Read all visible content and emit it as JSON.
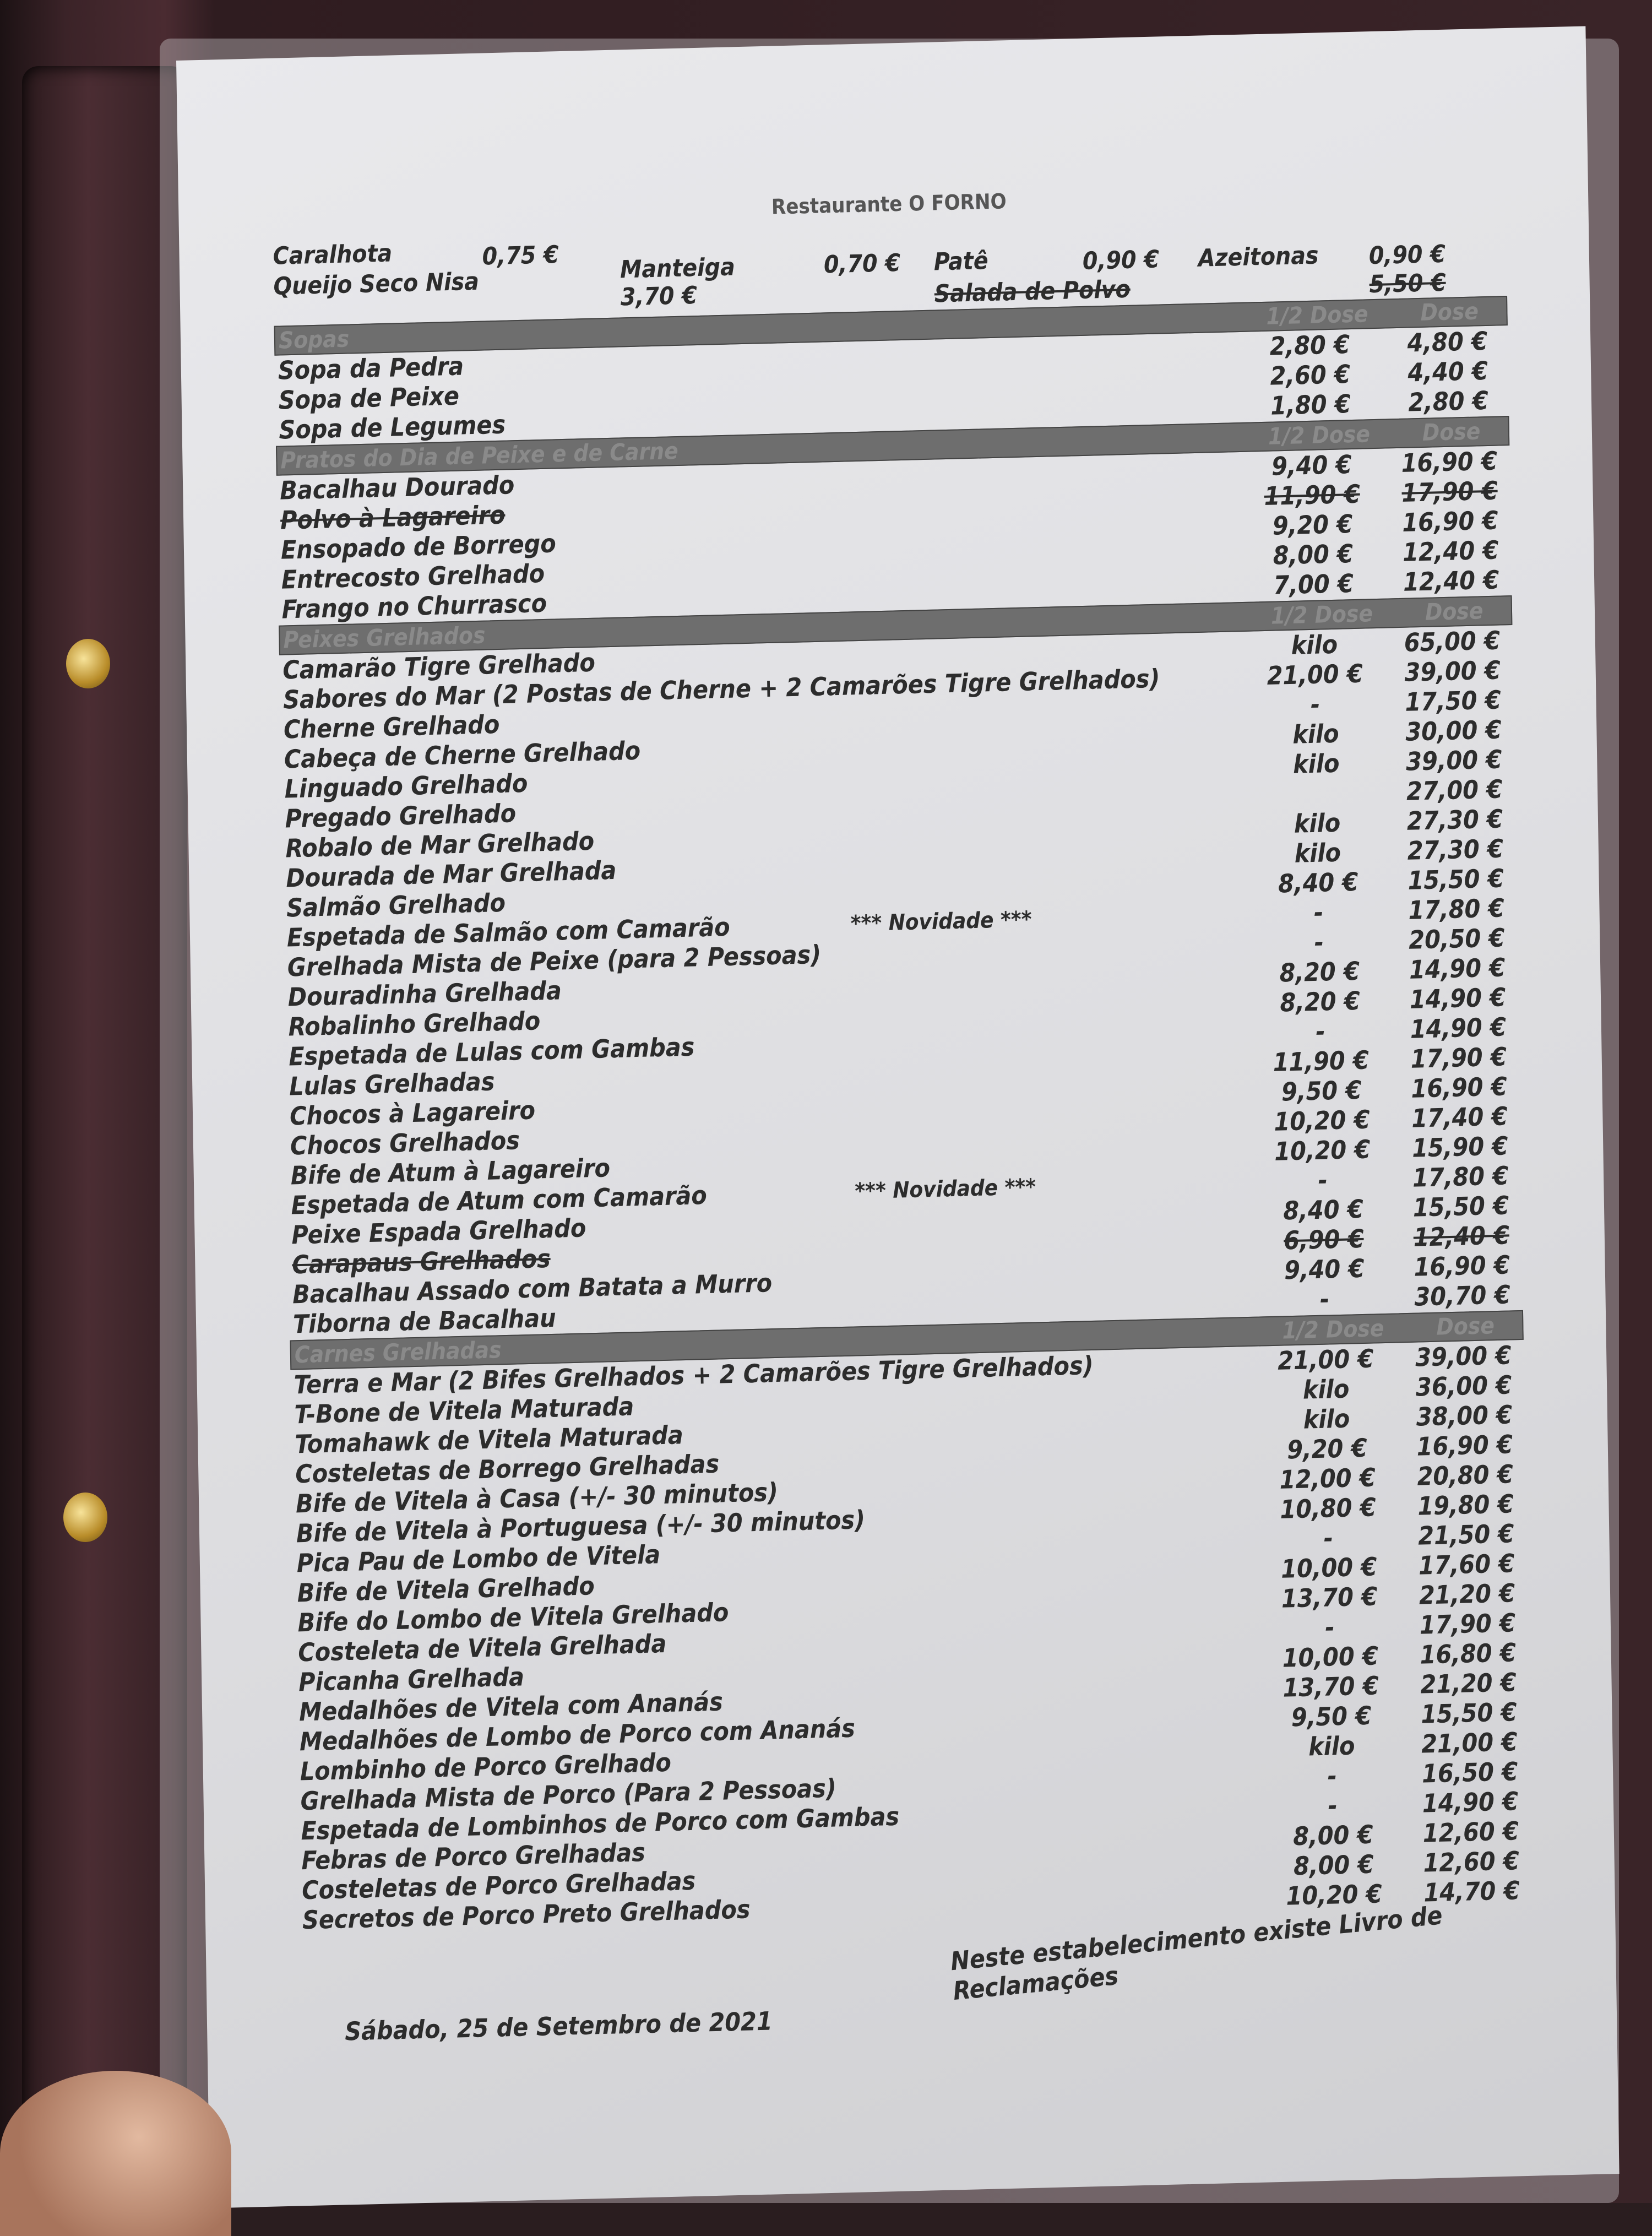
{
  "title": "Restaurante O FORNO",
  "starters": [
    {
      "name": "Caralhota",
      "price": "0,75 €"
    },
    {
      "name": "Manteiga",
      "price": "0,70 €"
    },
    {
      "name": "Patê",
      "price": "0,90 €"
    },
    {
      "name": "Azeitonas",
      "price": "0,90 €"
    },
    {
      "name": "Queijo Seco Nisa",
      "price": "3,70 €"
    },
    {
      "name": "Salada de Polvo",
      "price": "5,50 €",
      "struck": true
    }
  ],
  "sections": [
    {
      "name": "Sopas",
      "h1": "1/2 Dose",
      "h2": "Dose",
      "items": [
        {
          "name": "Sopa da Pedra",
          "half": "2,80 €",
          "full": "4,80 €"
        },
        {
          "name": "Sopa de Peixe",
          "half": "2,60 €",
          "full": "4,40 €"
        },
        {
          "name": "Sopa de Legumes",
          "half": "1,80 €",
          "full": "2,80 €"
        }
      ]
    },
    {
      "name": "Pratos do Dia de Peixe e de Carne",
      "h1": "1/2 Dose",
      "h2": "Dose",
      "items": [
        {
          "name": "Bacalhau Dourado",
          "half": "9,40 €",
          "full": "16,90 €"
        },
        {
          "name": "Polvo à Lagareiro",
          "half": "11,90 €",
          "full": "17,90 €",
          "struck": true
        },
        {
          "name": "Ensopado de Borrego",
          "half": "9,20 €",
          "full": "16,90 €"
        },
        {
          "name": "Entrecosto Grelhado",
          "half": "8,00 €",
          "full": "12,40 €"
        },
        {
          "name": "Frango no Churrasco",
          "half": "7,00 €",
          "full": "12,40 €"
        }
      ]
    },
    {
      "name": "Peixes Grelhados",
      "h1": "1/2 Dose",
      "h2": "Dose",
      "items": [
        {
          "name": "Camarão Tigre Grelhado",
          "half": "kilo",
          "full": "65,00 €"
        },
        {
          "name": "Sabores do Mar (2 Postas de Cherne + 2 Camarões Tigre Grelhados)",
          "half": "21,00 €",
          "full": "39,00 €"
        },
        {
          "name": "Cherne Grelhado",
          "half": "-",
          "full": "17,50 €"
        },
        {
          "name": "Cabeça de Cherne Grelhado",
          "half": "kilo",
          "full": "30,00 €"
        },
        {
          "name": "Linguado Grelhado",
          "half": "kilo",
          "full": "39,00 €"
        },
        {
          "name": "Pregado Grelhado",
          "half": "",
          "full": "27,00 €"
        },
        {
          "name": "Robalo de Mar Grelhado",
          "half": "kilo",
          "full": "27,30 €"
        },
        {
          "name": "Dourada de Mar Grelhada",
          "half": "kilo",
          "full": "27,30 €"
        },
        {
          "name": "Salmão Grelhado",
          "half": "8,40 €",
          "full": "15,50 €"
        },
        {
          "name": "Espetada de Salmão com Camarão",
          "note": "*** Novidade ***",
          "half": "-",
          "full": "17,80 €"
        },
        {
          "name": "Grelhada Mista de Peixe (para 2 Pessoas)",
          "half": "-",
          "full": "20,50 €"
        },
        {
          "name": "Douradinha Grelhada",
          "half": "8,20 €",
          "full": "14,90 €"
        },
        {
          "name": "Robalinho Grelhado",
          "half": "8,20 €",
          "full": "14,90 €"
        },
        {
          "name": "Espetada de Lulas com Gambas",
          "half": "-",
          "full": "14,90 €"
        },
        {
          "name": "Lulas Grelhadas",
          "half": "11,90 €",
          "full": "17,90 €"
        },
        {
          "name": "Chocos à Lagareiro",
          "half": "9,50 €",
          "full": "16,90 €"
        },
        {
          "name": "Chocos Grelhados",
          "half": "10,20 €",
          "full": "17,40 €"
        },
        {
          "name": "Bife de Atum à Lagareiro",
          "half": "10,20 €",
          "full": "15,90 €"
        },
        {
          "name": "Espetada de Atum com Camarão",
          "note": "*** Novidade ***",
          "half": "-",
          "full": "17,80 €"
        },
        {
          "name": "Peixe Espada Grelhado",
          "half": "8,40 €",
          "full": "15,50 €"
        },
        {
          "name": "Carapaus Grelhados",
          "half": "6,90 €",
          "full": "12,40 €",
          "struck": true
        },
        {
          "name": "Bacalhau Assado com Batata a Murro",
          "half": "9,40 €",
          "full": "16,90 €"
        },
        {
          "name": "Tiborna de Bacalhau",
          "half": "-",
          "full": "30,70 €"
        }
      ]
    },
    {
      "name": "Carnes Grelhadas",
      "h1": "1/2 Dose",
      "h2": "Dose",
      "items": [
        {
          "name": "Terra e Mar (2 Bifes Grelhados + 2 Camarões Tigre Grelhados)",
          "half": "21,00 €",
          "full": "39,00 €"
        },
        {
          "name": "T-Bone de Vitela Maturada",
          "half": "kilo",
          "full": "36,00 €"
        },
        {
          "name": "Tomahawk de Vitela Maturada",
          "half": "kilo",
          "full": "38,00 €"
        },
        {
          "name": "Costeletas de Borrego Grelhadas",
          "half": "9,20 €",
          "full": "16,90 €"
        },
        {
          "name": "Bife de Vitela à Casa (+/- 30 minutos)",
          "half": "12,00 €",
          "full": "20,80 €"
        },
        {
          "name": "Bife de Vitela à Portuguesa (+/- 30 minutos)",
          "half": "10,80 €",
          "full": "19,80 €"
        },
        {
          "name": "Pica Pau de Lombo de Vitela",
          "half": "-",
          "full": "21,50 €"
        },
        {
          "name": "Bife de Vitela Grelhado",
          "half": "10,00 €",
          "full": "17,60 €"
        },
        {
          "name": "Bife do Lombo de Vitela Grelhado",
          "half": "13,70 €",
          "full": "21,20 €"
        },
        {
          "name": "Costeleta de Vitela Grelhada",
          "half": "-",
          "full": "17,90 €"
        },
        {
          "name": "Picanha Grelhada",
          "half": "10,00 €",
          "full": "16,80 €"
        },
        {
          "name": "Medalhões de Vitela com Ananás",
          "half": "13,70 €",
          "full": "21,20 €"
        },
        {
          "name": "Medalhões de Lombo de Porco com Ananás",
          "half": "9,50 €",
          "full": "15,50 €"
        },
        {
          "name": "Lombinho de Porco Grelhado",
          "half": "kilo",
          "full": "21,00 €"
        },
        {
          "name": "Grelhada Mista de Porco (Para 2 Pessoas)",
          "half": "-",
          "full": "16,50 €"
        },
        {
          "name": "Espetada de Lombinhos de Porco com Gambas",
          "half": "-",
          "full": "14,90 €"
        },
        {
          "name": "Febras de Porco Grelhadas",
          "half": "8,00 €",
          "full": "12,60 €"
        },
        {
          "name": "Costeletas de Porco Grelhadas",
          "half": "8,00 €",
          "full": "12,60 €"
        },
        {
          "name": "Secretos de Porco Preto Grelhados",
          "half": "10,20 €",
          "full": "14,70 €"
        }
      ]
    }
  ],
  "footer": {
    "date": "Sábado, 25 de Setembro de 2021",
    "notice": "Neste estabelecimento existe Livro de Reclamações"
  },
  "colors": {
    "section_bar": "#6e6e6e",
    "binder": "#3a2428",
    "rivet": "#d4b04a"
  }
}
